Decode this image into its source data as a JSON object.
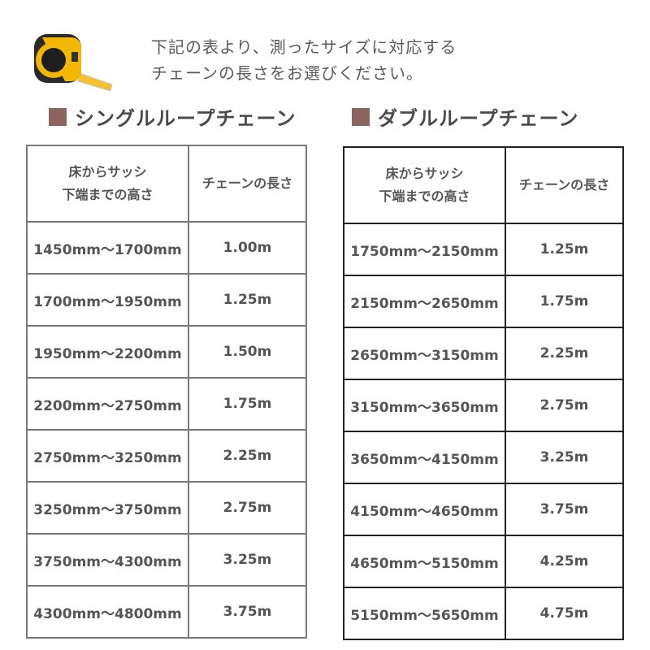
{
  "intro": {
    "line1": "下記の表より、測ったサイズに対応する",
    "line2": "チェーンの長さをお選びください。"
  },
  "accent_color": "#8c655f",
  "single": {
    "title": "シングルループチェーン",
    "header": {
      "height_line1": "床からサッシ",
      "height_line2": "下端までの高さ",
      "length": "チェーンの長さ"
    },
    "rows": [
      {
        "range": "1450mm～1700mm",
        "length": "1.00m"
      },
      {
        "range": "1700mm～1950mm",
        "length": "1.25m"
      },
      {
        "range": "1950mm～2200mm",
        "length": "1.50m"
      },
      {
        "range": "2200mm～2750mm",
        "length": "1.75m"
      },
      {
        "range": "2750mm～3250mm",
        "length": "2.25m"
      },
      {
        "range": "3250mm～3750mm",
        "length": "2.75m"
      },
      {
        "range": "3750mm～4300mm",
        "length": "3.25m"
      },
      {
        "range": "4300mm～4800mm",
        "length": "3.75m"
      }
    ]
  },
  "double": {
    "title": "ダブルループチェーン",
    "header": {
      "height_line1": "床からサッシ",
      "height_line2": "下端までの高さ",
      "length": "チェーンの長さ"
    },
    "rows": [
      {
        "range": "1750mm～2150mm",
        "length": "1.25m"
      },
      {
        "range": "2150mm～2650mm",
        "length": "1.75m"
      },
      {
        "range": "2650mm～3150mm",
        "length": "2.25m"
      },
      {
        "range": "3150mm～3650mm",
        "length": "2.75m"
      },
      {
        "range": "3650mm～4150mm",
        "length": "3.25m"
      },
      {
        "range": "4150mm～4650mm",
        "length": "3.75m"
      },
      {
        "range": "4650mm～5150mm",
        "length": "4.25m"
      },
      {
        "range": "5150mm～5650mm",
        "length": "4.75m"
      }
    ]
  }
}
